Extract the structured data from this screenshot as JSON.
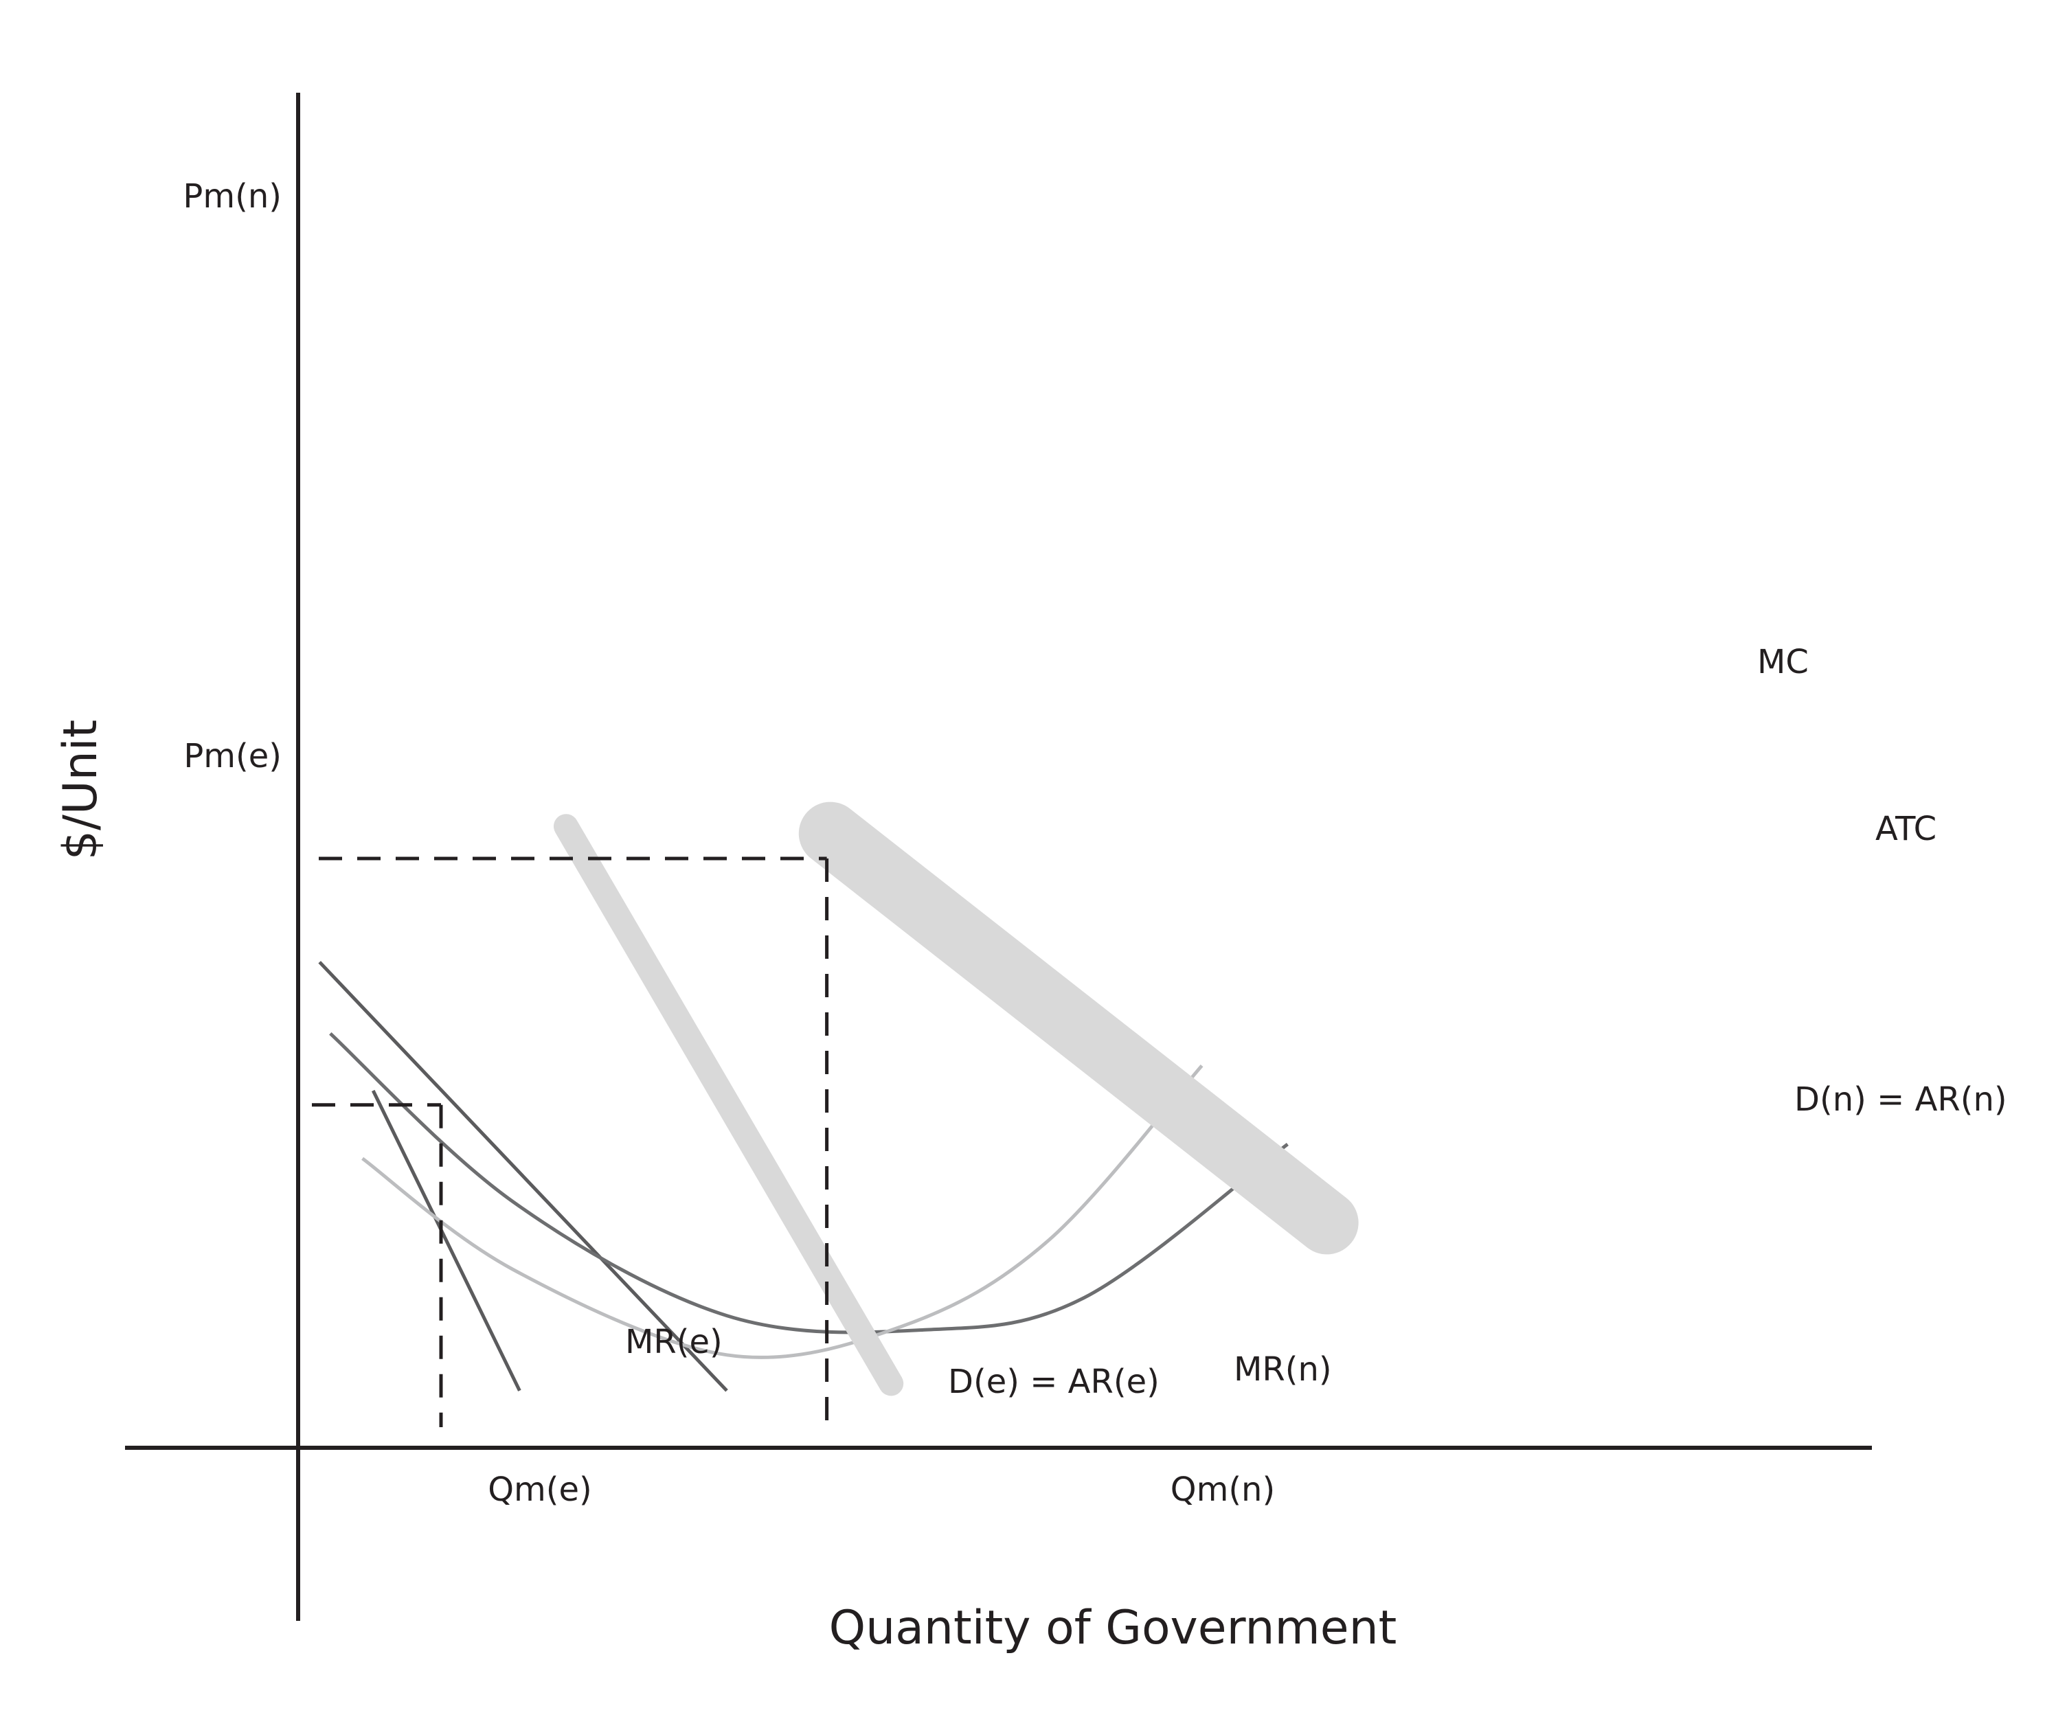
{
  "chart_data": {
    "type": "line",
    "title": "",
    "xlabel": "Quantity of Government",
    "ylabel": "$/Unit",
    "x_ticks": [
      "Qm(e)",
      "Qm(n)"
    ],
    "y_ticks": [
      "Pm(n)",
      "Pm(e)"
    ],
    "series": [
      {
        "name": "D(e) = AR(e)",
        "color": "#5b5b5d",
        "points": [
          [
            0.6,
            13.6
          ],
          [
            12.0,
            1.6
          ]
        ]
      },
      {
        "name": "MR(e)",
        "color": "#5b5b5d",
        "points": [
          [
            2.1,
            10.0
          ],
          [
            6.2,
            1.6
          ]
        ]
      },
      {
        "name": "ATC",
        "color": "#6d6e70",
        "points": [
          [
            0.9,
            11.6
          ],
          [
            6,
            6.9
          ],
          [
            12,
            3.7
          ],
          [
            17.5,
            3.3
          ],
          [
            22,
            4.2
          ],
          [
            27.7,
            8.5
          ]
        ]
      },
      {
        "name": "MC",
        "color": "#bcbdbf",
        "points": [
          [
            1.8,
            8.1
          ],
          [
            6,
            5.0
          ],
          [
            12,
            2.6
          ],
          [
            16.9,
            3.4
          ],
          [
            21,
            5.8
          ],
          [
            25.3,
            10.7
          ]
        ]
      },
      {
        "name": "D(n) = AR(n)",
        "color": "#d9d9d9",
        "points": [
          [
            14.9,
            17.2
          ],
          [
            28.8,
            6.3
          ]
        ]
      },
      {
        "name": "MR(n)",
        "color": "#d9d9d9",
        "points": [
          [
            7.5,
            17.4
          ],
          [
            16.6,
            1.8
          ]
        ]
      }
    ],
    "markers": {
      "Pm(n)": 16.5,
      "Pm(e)": 9.6,
      "Qm(e)": 4.0,
      "Qm(n)": 14.8
    },
    "grid": false,
    "legend": "none"
  }
}
